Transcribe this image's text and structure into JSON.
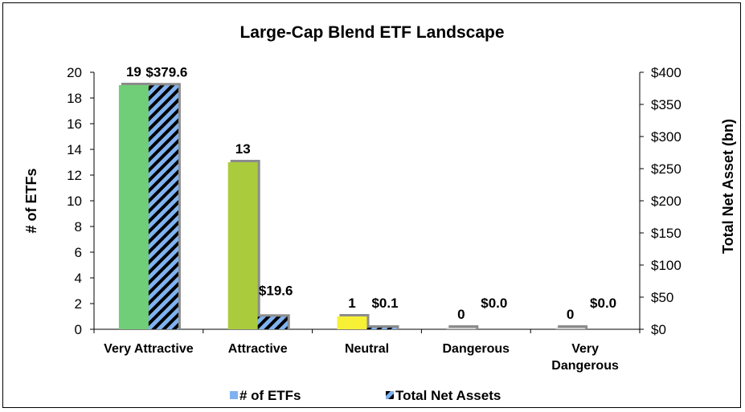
{
  "chart_data": {
    "type": "bar",
    "title": "Large-Cap Blend ETF Landscape",
    "categories": [
      [
        "Very Attractive"
      ],
      [
        "Attractive"
      ],
      [
        "Neutral"
      ],
      [
        "Dangerous"
      ],
      [
        "Very",
        "Dangerous"
      ]
    ],
    "ylabel_left": "# of ETFs",
    "ylabel_right": "Total Net Asset (bn)",
    "ylim_left": [
      0,
      20
    ],
    "ylim_right": [
      0,
      400
    ],
    "yticks_left": [
      "0",
      "2",
      "4",
      "6",
      "8",
      "10",
      "12",
      "14",
      "16",
      "18",
      "20"
    ],
    "yticks_right": [
      "$0",
      "$50",
      "$100",
      "$150",
      "$200",
      "$250",
      "$300",
      "$350",
      "$400"
    ],
    "series": [
      {
        "name": "# of ETFs",
        "axis": "left",
        "values": [
          19,
          13,
          1,
          0,
          0
        ],
        "labels": [
          "19",
          "13",
          "1",
          "0",
          "0"
        ],
        "colors": [
          "#70CE78",
          "#AACC3C",
          "#F7F035",
          "#CCCCCC",
          "#CCCCCC"
        ],
        "legend_color": "#7FB2F0"
      },
      {
        "name": "Total Net Assets",
        "axis": "right",
        "values": [
          379.6,
          19.6,
          0.1,
          0.0,
          0.0
        ],
        "labels": [
          "$379.6",
          "$19.6",
          "$0.1",
          "$0.0",
          "$0.0"
        ],
        "fill": "#7FB2F0",
        "stripe": "#000000"
      }
    ],
    "grid": false,
    "legend_position": "bottom"
  }
}
